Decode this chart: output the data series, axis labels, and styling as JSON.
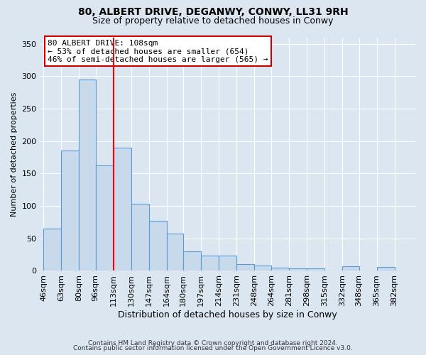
{
  "title1": "80, ALBERT DRIVE, DEGANWY, CONWY, LL31 9RH",
  "title2": "Size of property relative to detached houses in Conwy",
  "xlabel": "Distribution of detached houses by size in Conwy",
  "ylabel": "Number of detached properties",
  "bin_labels": [
    "46sqm",
    "63sqm",
    "80sqm",
    "96sqm",
    "113sqm",
    "130sqm",
    "147sqm",
    "164sqm",
    "180sqm",
    "197sqm",
    "214sqm",
    "231sqm",
    "248sqm",
    "264sqm",
    "281sqm",
    "298sqm",
    "315sqm",
    "332sqm",
    "348sqm",
    "365sqm",
    "382sqm"
  ],
  "bin_left_edges": [
    46,
    63,
    80,
    96,
    113,
    130,
    147,
    164,
    180,
    197,
    214,
    231,
    248,
    264,
    281,
    298,
    315,
    332,
    348,
    365,
    382
  ],
  "bar_heights": [
    65,
    185,
    295,
    163,
    190,
    103,
    77,
    57,
    30,
    24,
    23,
    10,
    8,
    5,
    4,
    4,
    0,
    7,
    0,
    6,
    0
  ],
  "bar_widths": [
    17,
    17,
    16,
    17,
    17,
    17,
    17,
    16,
    17,
    17,
    17,
    17,
    16,
    17,
    17,
    17,
    17,
    16,
    17,
    17,
    17
  ],
  "bar_color": "#c9d9ec",
  "bar_edge_color": "#5b9bd5",
  "red_line_x": 113,
  "ylim": [
    0,
    360
  ],
  "yticks": [
    0,
    50,
    100,
    150,
    200,
    250,
    300,
    350
  ],
  "annotation_title": "80 ALBERT DRIVE: 108sqm",
  "annotation_line1": "← 53% of detached houses are smaller (654)",
  "annotation_line2": "46% of semi-detached houses are larger (565) →",
  "annotation_box_color": "#ffffff",
  "annotation_box_edge_color": "#cc0000",
  "footer1": "Contains HM Land Registry data © Crown copyright and database right 2024.",
  "footer2": "Contains public sector information licensed under the Open Government Licence v3.0.",
  "background_color": "#dce6f1",
  "plot_background_color": "#dce6f1"
}
